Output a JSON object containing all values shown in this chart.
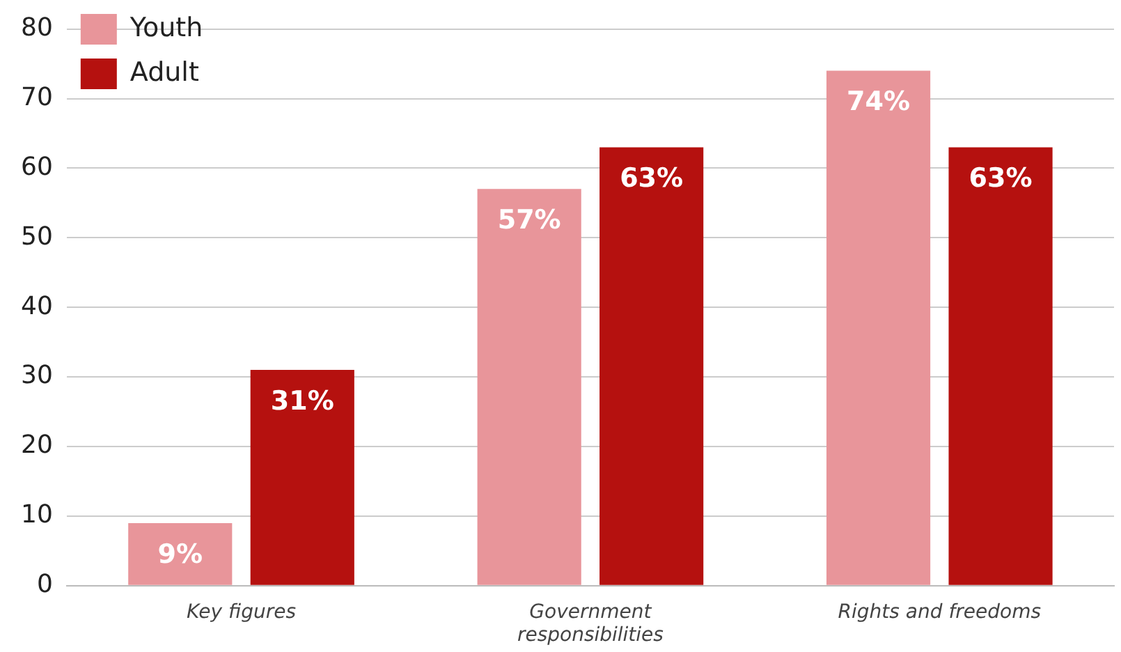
{
  "chart_data": {
    "type": "bar",
    "categories": [
      "Key figures",
      "Government responsibilities",
      "Rights and freedoms"
    ],
    "series": [
      {
        "name": "Youth",
        "color": "#e8959a",
        "values": [
          9,
          57,
          74
        ],
        "value_labels": [
          "9%",
          "57%",
          "74%"
        ]
      },
      {
        "name": "Adult",
        "color": "#b5110f",
        "values": [
          31,
          63,
          63
        ],
        "value_labels": [
          "31%",
          "63%",
          "63%"
        ]
      }
    ],
    "ylim": [
      0,
      80
    ],
    "yticks": [
      0,
      10,
      20,
      30,
      40,
      50,
      60,
      70,
      80
    ],
    "grid": "y",
    "legend": "top left"
  }
}
